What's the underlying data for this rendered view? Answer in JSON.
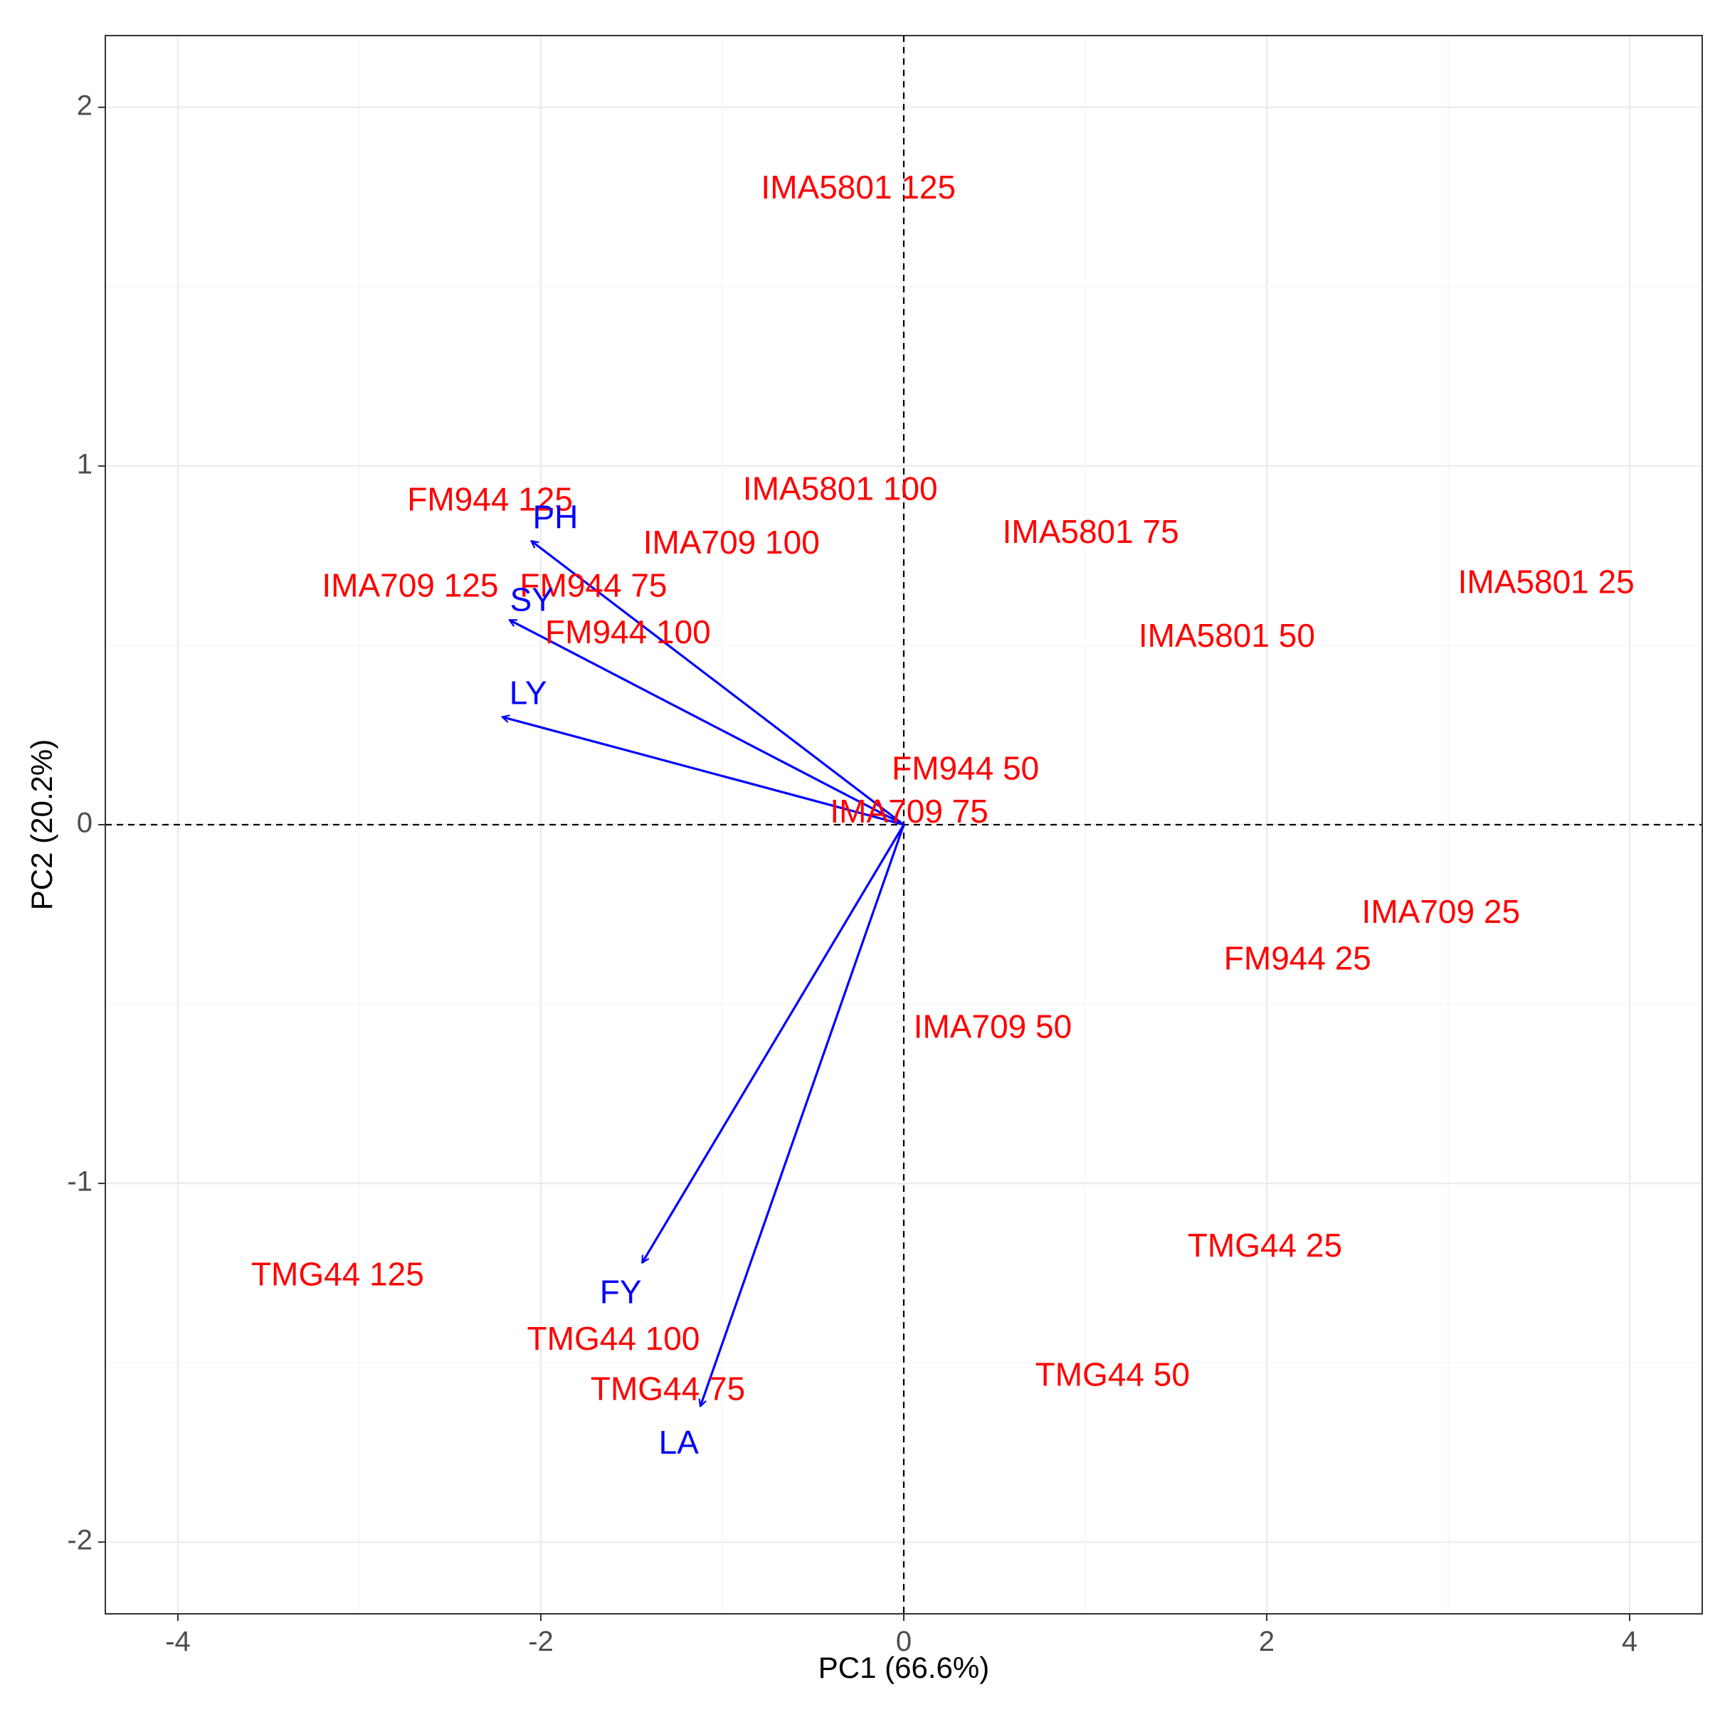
{
  "chart_data": {
    "type": "scatter",
    "subtype": "pca-biplot",
    "title": "",
    "xlabel": "PC1 (66.6%)",
    "ylabel": "PC2 (20.2%)",
    "xlim": [
      -4.4,
      4.4
    ],
    "ylim": [
      -2.2,
      2.2
    ],
    "x_ticks": [
      -4,
      -2,
      0,
      2,
      4
    ],
    "y_ticks": [
      -2,
      -1,
      0,
      1,
      2
    ],
    "x_tick_labels": [
      "-4",
      "-2",
      "0",
      "2",
      "4"
    ],
    "y_tick_labels": [
      "-2",
      "-1",
      "0",
      "1",
      "2"
    ],
    "grid": true,
    "reference_lines": [
      0,
      0
    ],
    "colors": {
      "observations": "#ff0000",
      "variables": "#0000ff",
      "grid": "#ebebeb",
      "reference": "#000000",
      "panel_border": "#333333"
    },
    "observations": [
      {
        "label": "IMA5801 125",
        "x": -0.25,
        "y": 1.77
      },
      {
        "label": "IMA5801 100",
        "x": -0.35,
        "y": 0.93
      },
      {
        "label": "IMA5801 75",
        "x": 1.03,
        "y": 0.81
      },
      {
        "label": "IMA5801 50",
        "x": 1.78,
        "y": 0.52
      },
      {
        "label": "IMA5801 25",
        "x": 3.54,
        "y": 0.67
      },
      {
        "label": "FM944 125",
        "x": -2.28,
        "y": 0.9
      },
      {
        "label": "FM944 100",
        "x": -1.52,
        "y": 0.53
      },
      {
        "label": "FM944 75",
        "x": -1.71,
        "y": 0.66
      },
      {
        "label": "FM944 50",
        "x": 0.34,
        "y": 0.15
      },
      {
        "label": "FM944 25",
        "x": 2.17,
        "y": -0.38
      },
      {
        "label": "IMA709 125",
        "x": -2.72,
        "y": 0.66
      },
      {
        "label": "IMA709 100",
        "x": -0.95,
        "y": 0.78
      },
      {
        "label": "IMA709 75",
        "x": 0.03,
        "y": 0.03
      },
      {
        "label": "IMA709 50",
        "x": 0.49,
        "y": -0.57
      },
      {
        "label": "IMA709 25",
        "x": 2.96,
        "y": -0.25
      },
      {
        "label": "TMG44 125",
        "x": -3.12,
        "y": -1.26
      },
      {
        "label": "TMG44 100",
        "x": -1.6,
        "y": -1.44
      },
      {
        "label": "TMG44 75",
        "x": -1.3,
        "y": -1.58
      },
      {
        "label": "TMG44 50",
        "x": 1.15,
        "y": -1.54
      },
      {
        "label": "TMG44 25",
        "x": 1.99,
        "y": -1.18
      }
    ],
    "loadings": [
      {
        "variable": "PH",
        "x": -2.05,
        "y": 0.79,
        "label_x": -1.92,
        "label_y": 0.85
      },
      {
        "variable": "SY",
        "x": -2.17,
        "y": 0.57,
        "label_x": -2.05,
        "label_y": 0.62
      },
      {
        "variable": "LY",
        "x": -2.21,
        "y": 0.3,
        "label_x": -2.07,
        "label_y": 0.36
      },
      {
        "variable": "FY",
        "x": -1.44,
        "y": -1.22,
        "label_x": -1.56,
        "label_y": -1.31
      },
      {
        "variable": "LA",
        "x": -1.12,
        "y": -1.62,
        "label_x": -1.24,
        "label_y": -1.73
      }
    ]
  }
}
